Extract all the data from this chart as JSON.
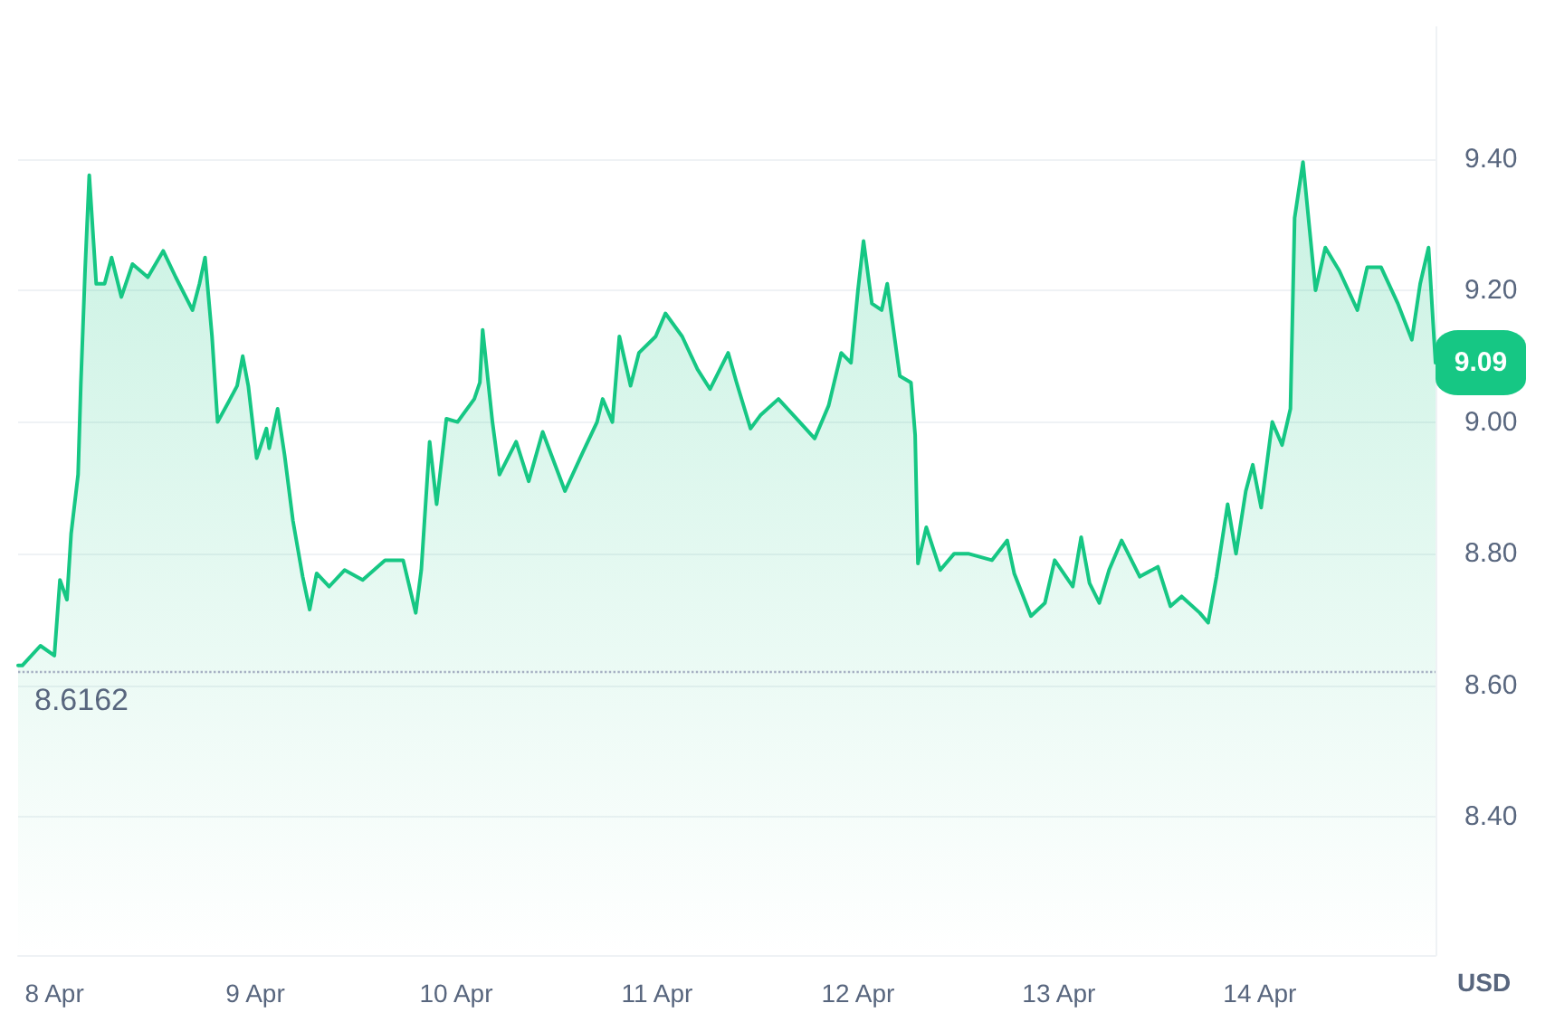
{
  "chart_data": {
    "type": "area",
    "ylabel": "USD",
    "color": "#16c784",
    "grid": "y",
    "marker": "none",
    "line_style": "solid",
    "xlim": [
      "--04-07T19:40",
      "--04-14T21:00"
    ],
    "xticks": [
      {
        "value": "--04-08",
        "label": "8 Apr"
      },
      {
        "value": "--04-09",
        "label": "9 Apr"
      },
      {
        "value": "--04-10",
        "label": "10 Apr"
      },
      {
        "value": "--04-11",
        "label": "11 Apr"
      },
      {
        "value": "--04-12",
        "label": "12 Apr"
      },
      {
        "value": "--04-13",
        "label": "13 Apr"
      },
      {
        "value": "--04-14",
        "label": "14 Apr"
      }
    ],
    "ylim": [
      8.19,
      9.6
    ],
    "yticks": [
      {
        "value": 8.4,
        "label": "8.40"
      },
      {
        "value": 8.6,
        "label": "8.60"
      },
      {
        "value": 8.8,
        "label": "8.80"
      },
      {
        "value": 9.0,
        "label": "9.00"
      },
      {
        "value": 9.2,
        "label": "9.20"
      },
      {
        "value": 9.4,
        "label": "9.40"
      }
    ],
    "ref_lines": [
      {
        "axis": "y",
        "value": 8.6162,
        "label": "8.6162",
        "color": "#a6b0c3",
        "line_style": "dotted"
      }
    ],
    "annotations": [
      {
        "text": "9.09",
        "x": "--04-14T21:00",
        "y": 9.09
      }
    ],
    "x": [
      "--04-07T19:40",
      "--04-07T20:10",
      "--04-07T22:20",
      "--04-08T00:00",
      "--04-08T00:40",
      "--04-08T01:30",
      "--04-08T02:00",
      "--04-08T02:50",
      "--04-08T03:10",
      "--04-08T03:40",
      "--04-08T04:10",
      "--04-08T05:00",
      "--04-08T06:00",
      "--04-08T06:50",
      "--04-08T08:00",
      "--04-08T09:20",
      "--04-08T11:10",
      "--04-08T13:00",
      "--04-08T14:30",
      "--04-08T16:30",
      "--04-08T17:20",
      "--04-08T18:00",
      "--04-08T18:50",
      "--04-08T19:30",
      "--04-08T21:00",
      "--04-08T21:50",
      "--04-08T22:30",
      "--04-08T23:10",
      "--04-09T00:10",
      "--04-09T01:20",
      "--04-09T01:40",
      "--04-09T02:40",
      "--04-09T03:30",
      "--04-09T04:30",
      "--04-09T05:40",
      "--04-09T06:30",
      "--04-09T07:20",
      "--04-09T08:50",
      "--04-09T10:40",
      "--04-09T12:50",
      "--04-09T15:30",
      "--04-09T17:40",
      "--04-09T19:10",
      "--04-09T19:50",
      "--04-09T20:50",
      "--04-09T21:40",
      "--04-09T22:50",
      "--04-10T00:10",
      "--04-10T02:10",
      "--04-10T02:50",
      "--04-10T03:10",
      "--04-10T04:20",
      "--04-10T05:10",
      "--04-10T07:10",
      "--04-10T08:40",
      "--04-10T10:20",
      "--04-10T13:00",
      "--04-10T15:10",
      "--04-10T16:50",
      "--04-10T17:30",
      "--04-10T18:40",
      "--04-10T19:30",
      "--04-10T20:50",
      "--04-10T21:50",
      "--04-10T23:50",
      "--04-11T01:00",
      "--04-11T03:00",
      "--04-11T04:50",
      "--04-11T06:20",
      "--04-11T08:30",
      "--04-11T09:30",
      "--04-11T11:10",
      "--04-11T12:20",
      "--04-11T14:30",
      "--04-11T16:40",
      "--04-11T18:50",
      "--04-11T20:30",
      "--04-11T22:00",
      "--04-11T23:10",
      "--04-12T00:00",
      "--04-12T00:40",
      "--04-12T01:40",
      "--04-12T02:50",
      "--04-12T03:30",
      "--04-12T05:00",
      "--04-12T06:20",
      "--04-12T06:50",
      "--04-12T07:10",
      "--04-12T08:10",
      "--04-12T09:50",
      "--04-12T11:30",
      "--04-12T13:10",
      "--04-12T16:00",
      "--04-12T17:50",
      "--04-12T18:40",
      "--04-12T20:40",
      "--04-12T22:20",
      "--04-12T23:30",
      "--04-13T01:40",
      "--04-13T02:40",
      "--04-13T03:40",
      "--04-13T04:50",
      "--04-13T06:00",
      "--04-13T07:30",
      "--04-13T09:40",
      "--04-13T11:50",
      "--04-13T13:20",
      "--04-13T14:40",
      "--04-13T16:50",
      "--04-13T17:50",
      "--04-13T18:50",
      "--04-13T20:10",
      "--04-13T21:10",
      "--04-13T22:20",
      "--04-13T23:10",
      "--04-14T00:10",
      "--04-14T01:30",
      "--04-14T02:40",
      "--04-14T03:40",
      "--04-14T04:10",
      "--04-14T05:10",
      "--04-14T06:40",
      "--04-14T07:50",
      "--04-14T09:30",
      "--04-14T11:40",
      "--04-14T12:50",
      "--04-14T14:30",
      "--04-14T16:30",
      "--04-14T18:10",
      "--04-14T19:10",
      "--04-14T20:10",
      "--04-14T21:00"
    ],
    "values": [
      8.63,
      8.63,
      8.66,
      8.645,
      8.76,
      8.73,
      8.83,
      8.92,
      9.06,
      9.23,
      9.375,
      9.21,
      9.21,
      9.25,
      9.19,
      9.24,
      9.22,
      9.26,
      9.22,
      9.17,
      9.21,
      9.25,
      9.13,
      9.0,
      9.035,
      9.055,
      9.1,
      9.055,
      8.945,
      8.99,
      8.96,
      9.02,
      8.95,
      8.85,
      8.765,
      8.715,
      8.77,
      8.75,
      8.775,
      8.76,
      8.79,
      8.79,
      8.71,
      8.775,
      8.97,
      8.875,
      9.005,
      9.0,
      9.035,
      9.06,
      9.14,
      9.0,
      8.92,
      8.97,
      8.91,
      8.985,
      8.895,
      8.955,
      9.0,
      9.035,
      9.0,
      9.13,
      9.055,
      9.105,
      9.13,
      9.165,
      9.13,
      9.08,
      9.05,
      9.105,
      9.06,
      8.99,
      9.01,
      9.035,
      9.005,
      8.975,
      9.025,
      9.105,
      9.09,
      9.2,
      9.275,
      9.18,
      9.17,
      9.21,
      9.07,
      9.06,
      8.98,
      8.785,
      8.84,
      8.775,
      8.8,
      8.8,
      8.79,
      8.82,
      8.77,
      8.705,
      8.725,
      8.79,
      8.75,
      8.825,
      8.755,
      8.725,
      8.775,
      8.82,
      8.765,
      8.78,
      8.72,
      8.735,
      8.71,
      8.695,
      8.765,
      8.875,
      8.8,
      8.895,
      8.935,
      8.87,
      9.0,
      8.965,
      9.02,
      9.31,
      9.395,
      9.2,
      9.265,
      9.23,
      9.17,
      9.235,
      9.235,
      9.18,
      9.125,
      9.21,
      9.265,
      9.09
    ]
  }
}
